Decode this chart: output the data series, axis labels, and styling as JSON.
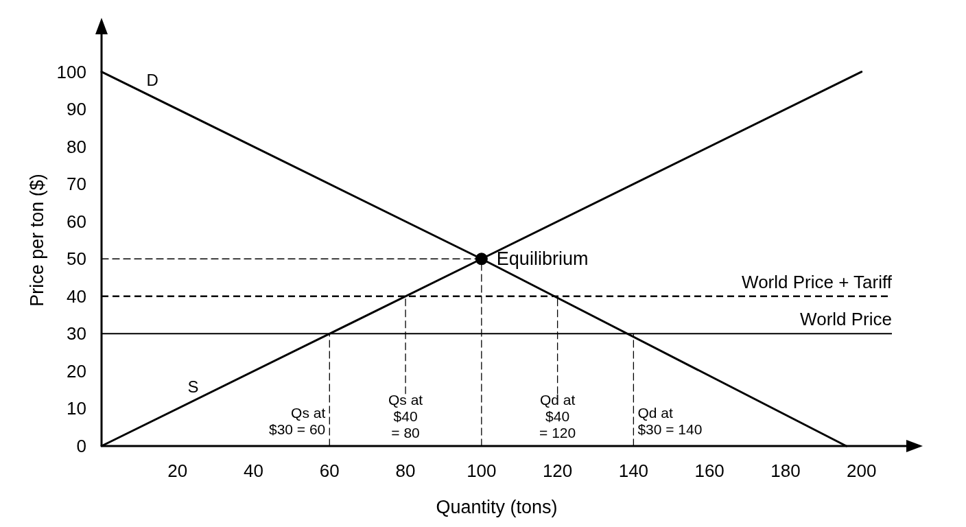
{
  "chart_data": {
    "type": "line",
    "xlabel": "Quantity (tons)",
    "ylabel": "Price per ton ($)",
    "xlim": [
      0,
      208
    ],
    "ylim": [
      0,
      110
    ],
    "xticks": [
      20,
      40,
      60,
      80,
      100,
      120,
      140,
      160,
      180,
      200
    ],
    "yticks": [
      0,
      10,
      20,
      30,
      40,
      50,
      60,
      70,
      80,
      90,
      100
    ],
    "grid": false,
    "marker": "none",
    "series": [
      {
        "name": "D",
        "color": "#000000",
        "x": [
          0,
          100,
          196
        ],
        "values": [
          100,
          50,
          0
        ],
        "line_style": "solid"
      },
      {
        "name": "S",
        "color": "#000000",
        "x": [
          0,
          100,
          200
        ],
        "values": [
          0,
          50,
          100
        ],
        "line_style": "solid"
      },
      {
        "color": "#000000",
        "x": [
          0,
          100
        ],
        "values": [
          50,
          50
        ],
        "line_style": "dashed"
      },
      {
        "color": "#000000",
        "x": [
          60,
          60
        ],
        "values": [
          0,
          30
        ],
        "line_style": "dashed"
      },
      {
        "color": "#000000",
        "x": [
          80,
          80
        ],
        "values": [
          14,
          40
        ],
        "line_style": "dashed"
      },
      {
        "color": "#000000",
        "x": [
          100,
          100
        ],
        "values": [
          0,
          50
        ],
        "line_style": "dashed"
      },
      {
        "color": "#000000",
        "x": [
          120,
          120
        ],
        "values": [
          14,
          40
        ],
        "line_style": "dashed"
      },
      {
        "color": "#000000",
        "x": [
          140,
          140
        ],
        "values": [
          0,
          30
        ],
        "line_style": "dashed"
      },
      {
        "type": "scatter",
        "color": "#000000",
        "x": [
          100
        ],
        "values": [
          50
        ],
        "marker": "circle"
      }
    ],
    "ref_lines": [
      {
        "axis": "y",
        "value": 40,
        "label": "World Price + Tariff",
        "line_style": "dashed",
        "color": "#000000"
      },
      {
        "axis": "y",
        "value": 30,
        "label": "World Price",
        "line_style": "solid",
        "color": "#000000"
      }
    ],
    "annotations": [
      {
        "text": "Equilibrium",
        "x": 100,
        "y": 50
      },
      {
        "text": "Qs at\n$30 = 60",
        "x": 60,
        "y": 7.5
      },
      "Qs at\n$40\n= 80",
      "Qd at\n$40\n= 120",
      {
        "text": "Qd at\n$30 = 140",
        "x": 140,
        "y": 7.5
      }
    ]
  }
}
